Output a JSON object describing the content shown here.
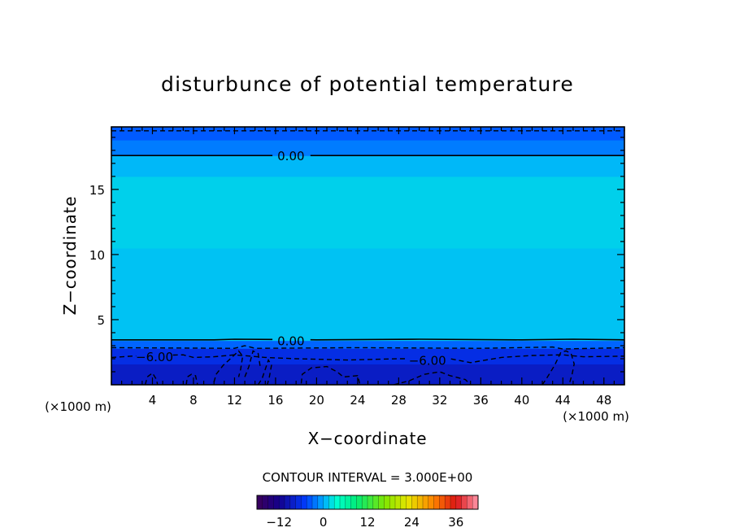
{
  "chart_data": {
    "type": "heatmap",
    "title": "disturbunce of potential temperature",
    "xlabel": "X−coordinate",
    "ylabel": "Z−coordinate",
    "x_unit_left": "(×1000 m)",
    "x_unit_right": "(×1000 m)",
    "xlim": [
      0,
      50
    ],
    "ylim": [
      0,
      19.8
    ],
    "x_ticks": [
      4,
      8,
      12,
      16,
      20,
      24,
      28,
      32,
      36,
      40,
      44,
      48
    ],
    "y_ticks": [
      5,
      10,
      15
    ],
    "contour_interval_text": "CONTOUR INTERVAL = 3.000E+00",
    "contour_labels": [
      {
        "text": "0.00",
        "x": 17.5,
        "z": 17.6
      },
      {
        "text": "0.00",
        "x": 17.5,
        "z": 3.4
      },
      {
        "text": "−6.00",
        "x": 4.2,
        "z": 2.2
      },
      {
        "text": "−6.00",
        "x": 30.8,
        "z": 1.9
      }
    ],
    "colorbar": {
      "min": -18,
      "max": 42,
      "tick_values": [
        -12,
        0,
        12,
        24,
        36
      ],
      "tick_labels": [
        "−12",
        "0",
        "12",
        "24",
        "36"
      ]
    },
    "field_bands": [
      {
        "z0": 0.0,
        "z1": 1.6,
        "value": -8.5
      },
      {
        "z0": 1.6,
        "z1": 2.8,
        "value": -6.5
      },
      {
        "z0": 2.8,
        "z1": 3.4,
        "value": -3.0
      },
      {
        "z0": 3.4,
        "z1": 10.5,
        "value": 1.0
      },
      {
        "z0": 10.5,
        "z1": 16.0,
        "value": 1.6
      },
      {
        "z0": 16.0,
        "z1": 17.6,
        "value": 0.6
      },
      {
        "z0": 17.6,
        "z1": 18.8,
        "value": -2.0
      },
      {
        "z0": 18.8,
        "z1": 19.8,
        "value": -3.5
      }
    ],
    "contours": [
      {
        "level": 0,
        "style": "solid",
        "label_gap": [
          15.7,
          19.4
        ],
        "points": [
          [
            0,
            17.6
          ],
          [
            50,
            17.6
          ]
        ]
      },
      {
        "level": 0,
        "style": "solid",
        "label_gap": [
          15.7,
          19.4
        ],
        "points": [
          [
            0,
            3.45
          ],
          [
            10,
            3.45
          ],
          [
            12,
            3.5
          ],
          [
            20,
            3.45
          ],
          [
            30,
            3.5
          ],
          [
            40,
            3.45
          ],
          [
            45,
            3.5
          ],
          [
            50,
            3.45
          ]
        ]
      },
      {
        "level": -3,
        "style": "dashed",
        "points": [
          [
            0,
            19.5
          ],
          [
            50,
            19.5
          ]
        ]
      },
      {
        "level": -3,
        "style": "dashed",
        "points": [
          [
            0,
            2.85
          ],
          [
            12,
            2.8
          ],
          [
            13,
            3.0
          ],
          [
            14,
            2.8
          ],
          [
            24,
            2.85
          ],
          [
            36,
            2.8
          ],
          [
            43,
            2.9
          ],
          [
            44,
            2.75
          ],
          [
            50,
            2.85
          ]
        ]
      },
      {
        "level": -6,
        "style": "dashed",
        "label_gap": [
          2.4,
          6.0
        ],
        "points": [
          [
            0,
            2.1
          ],
          [
            2,
            2.2
          ],
          [
            7,
            2.3
          ],
          [
            8,
            2.1
          ],
          [
            10,
            2.15
          ],
          [
            12,
            2.3
          ],
          [
            15,
            2.1
          ],
          [
            18,
            2.0
          ],
          [
            23,
            1.9
          ],
          [
            28,
            2.0
          ],
          [
            33,
            2.0
          ],
          [
            35,
            1.7
          ],
          [
            38,
            2.1
          ],
          [
            41,
            2.25
          ],
          [
            44,
            2.3
          ],
          [
            46,
            2.15
          ],
          [
            50,
            2.2
          ]
        ],
        "label_gap2": [
          28.7,
          33.1
        ]
      },
      {
        "level": -6,
        "style": "dashed",
        "points": [
          [
            10.0,
            0.2
          ],
          [
            10.2,
            0.8
          ],
          [
            10.9,
            1.5
          ],
          [
            11.6,
            2.0
          ],
          [
            12.4,
            2.6
          ],
          [
            12.8,
            2.2
          ],
          [
            12.6,
            1.2
          ],
          [
            12.4,
            0.6
          ]
        ]
      },
      {
        "level": -6,
        "style": "dashed",
        "points": [
          [
            13.0,
            0.6
          ],
          [
            13.4,
            1.4
          ],
          [
            13.8,
            2.6
          ],
          [
            14.3,
            2.4
          ],
          [
            14.5,
            1.4
          ]
        ]
      },
      {
        "level": -6,
        "style": "dashed",
        "points": [
          [
            14.3,
            0.0
          ],
          [
            14.7,
            0.5
          ],
          [
            15.0,
            1.2
          ],
          [
            15.3,
            1.9
          ],
          [
            15.6,
            1.5
          ],
          [
            15.4,
            0.6
          ],
          [
            15.2,
            0.0
          ]
        ]
      },
      {
        "level": -6,
        "style": "dashed",
        "points": [
          [
            18.5,
            0.1
          ],
          [
            18.6,
            0.8
          ],
          [
            19.5,
            1.3
          ],
          [
            21.0,
            1.4
          ],
          [
            22.0,
            1.0
          ],
          [
            22.6,
            0.6
          ],
          [
            24.0,
            0.7
          ],
          [
            24.2,
            0.1
          ]
        ]
      },
      {
        "level": -6,
        "style": "dashed",
        "points": [
          [
            27.5,
            0.0
          ],
          [
            29.0,
            0.3
          ],
          [
            30.5,
            0.8
          ],
          [
            32.0,
            1.0
          ],
          [
            33.0,
            0.7
          ],
          [
            34.5,
            0.4
          ],
          [
            35.0,
            0.0
          ]
        ]
      },
      {
        "level": -6,
        "style": "dashed",
        "points": [
          [
            42.0,
            0.0
          ],
          [
            42.5,
            0.6
          ],
          [
            43.2,
            1.5
          ],
          [
            43.8,
            2.5
          ],
          [
            44.3,
            2.6
          ],
          [
            44.8,
            2.4
          ],
          [
            45.1,
            1.6
          ],
          [
            44.9,
            0.8
          ],
          [
            44.6,
            0.0
          ]
        ]
      },
      {
        "level": -9,
        "style": "dashed",
        "points": [
          [
            3.3,
            0.0
          ],
          [
            3.5,
            0.6
          ],
          [
            4.0,
            0.9
          ],
          [
            4.4,
            0.4
          ],
          [
            4.5,
            0.0
          ]
        ]
      },
      {
        "level": -9,
        "style": "dashed",
        "points": [
          [
            7.3,
            0.0
          ],
          [
            7.4,
            0.6
          ],
          [
            7.8,
            0.8
          ],
          [
            8.2,
            0.7
          ],
          [
            8.4,
            0.0
          ]
        ]
      }
    ]
  }
}
